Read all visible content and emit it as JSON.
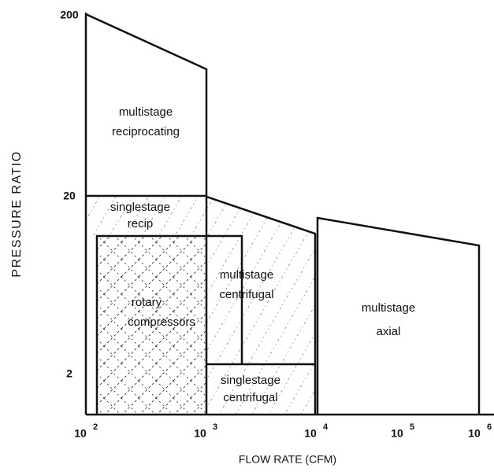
{
  "axes": {
    "x_label": "FLOW RATE (CFM)",
    "y_label": "PRESSURE RATIO",
    "x_ticks": [
      {
        "base": "10",
        "exponent": "2"
      },
      {
        "base": "10",
        "exponent": "3"
      },
      {
        "base": "10",
        "exponent": "4"
      },
      {
        "base": "10",
        "exponent": "5"
      },
      {
        "base": "10",
        "exponent": "6"
      }
    ],
    "y_ticks": [
      "200",
      "20",
      "2"
    ]
  },
  "regions": [
    {
      "lines": [
        "multistage",
        "reciprocating"
      ]
    },
    {
      "lines": [
        "singlestage",
        "recip"
      ]
    },
    {
      "lines": [
        "rotary",
        "compressors"
      ]
    },
    {
      "lines": [
        "multistage",
        "centrifugal"
      ]
    },
    {
      "lines": [
        "singlestage",
        "centrifugal"
      ]
    },
    {
      "lines": [
        "multistage",
        "axial"
      ]
    }
  ]
}
